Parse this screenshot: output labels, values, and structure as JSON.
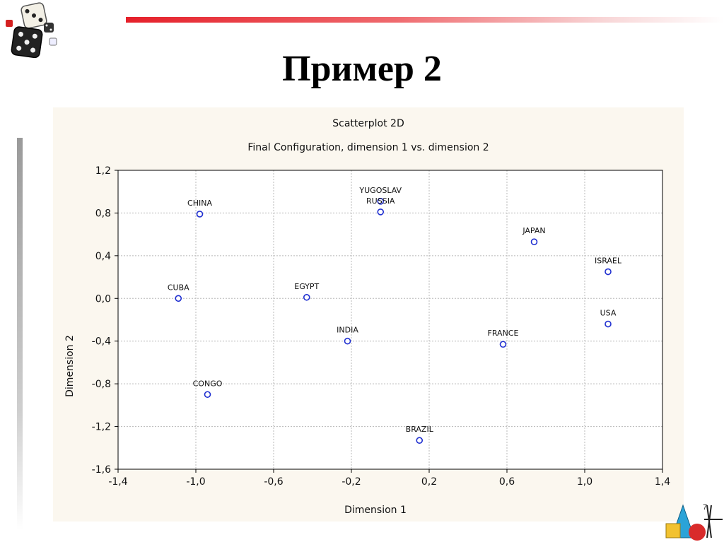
{
  "slide": {
    "title": "Пример 2"
  },
  "colors": {
    "accent_bar": "#e5202a",
    "point": "#1f2fd0",
    "panel": "#fbf7ef",
    "grid": "#b8b8b8"
  },
  "icons": {
    "top_left": "dice-icon",
    "bottom_right": "geometry-shapes-icon"
  },
  "chart_data": {
    "type": "scatter",
    "title": "Scatterplot 2D",
    "subtitle": "Final Configuration, dimension 1 vs. dimension 2",
    "xlabel": "Dimension 1",
    "ylabel": "Dimension 2",
    "xlim": [
      -1.4,
      1.4
    ],
    "ylim": [
      -1.6,
      1.2
    ],
    "xticks": [
      -1.4,
      -1.0,
      -0.6,
      -0.2,
      0.2,
      0.6,
      1.0,
      1.4
    ],
    "xtick_labels": [
      "-1,4",
      "-1,0",
      "-0,6",
      "-0,2",
      "0,2",
      "0,6",
      "1,0",
      "1,4"
    ],
    "yticks": [
      1.2,
      0.8,
      0.4,
      0.0,
      -0.4,
      -0.8,
      -1.2,
      -1.6
    ],
    "ytick_labels": [
      "1,2",
      "0,8",
      "0,4",
      "0,0",
      "-0,4",
      "-0,8",
      "-1,2",
      "-1,6"
    ],
    "grid": true,
    "points": [
      {
        "label": "CHINA",
        "x": -0.98,
        "y": 0.79
      },
      {
        "label": "YUGOSLAV",
        "x": -0.05,
        "y": 0.91
      },
      {
        "label": "RUSSIA",
        "x": -0.05,
        "y": 0.81
      },
      {
        "label": "JAPAN",
        "x": 0.74,
        "y": 0.53
      },
      {
        "label": "ISRAEL",
        "x": 1.12,
        "y": 0.25
      },
      {
        "label": "CUBA",
        "x": -1.09,
        "y": 0.0
      },
      {
        "label": "EGYPT",
        "x": -0.43,
        "y": 0.01
      },
      {
        "label": "INDIA",
        "x": -0.22,
        "y": -0.4
      },
      {
        "label": "FRANCE",
        "x": 0.58,
        "y": -0.43
      },
      {
        "label": "USA",
        "x": 1.12,
        "y": -0.24
      },
      {
        "label": "CONGO",
        "x": -0.94,
        "y": -0.9
      },
      {
        "label": "BRAZIL",
        "x": 0.15,
        "y": -1.33
      }
    ]
  }
}
